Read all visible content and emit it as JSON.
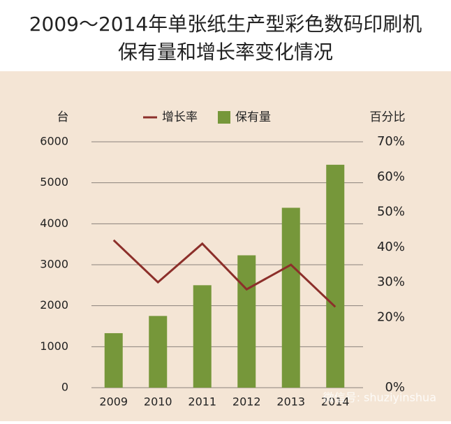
{
  "chart_data": {
    "type": "bar-line",
    "title": "2009～2014年单张纸生产型彩色数码印刷机",
    "subtitle": "保有量和增长率变化情况",
    "y_label": "台",
    "y2_label": "百分比",
    "watermark": "微信号: shuziyinshua",
    "categories": [
      "2009",
      "2010",
      "2011",
      "2012",
      "2013",
      "2014"
    ],
    "series": [
      {
        "name": "增长率",
        "type": "line",
        "axis": "y2",
        "color": "#8c2f2a",
        "values": [
          42,
          30,
          41,
          28,
          35,
          23
        ]
      },
      {
        "name": "保有量",
        "type": "bar",
        "color": "#76973a",
        "values": [
          1330,
          1750,
          2500,
          3230,
          4390,
          5440
        ]
      }
    ],
    "ylim": [
      0,
      6000
    ],
    "yticks": [
      0,
      1000,
      2000,
      3000,
      4000,
      5000,
      6000
    ],
    "y2lim": [
      0,
      70
    ],
    "y2ticks": [
      {
        "value": 0,
        "label": "0%"
      },
      {
        "value": 20,
        "label": "20%"
      },
      {
        "value": 30,
        "label": "30%"
      },
      {
        "value": 40,
        "label": "40%"
      },
      {
        "value": 50,
        "label": "50%"
      },
      {
        "value": 60,
        "label": "60%"
      },
      {
        "value": 70,
        "label": "70%"
      }
    ],
    "grid": true
  }
}
